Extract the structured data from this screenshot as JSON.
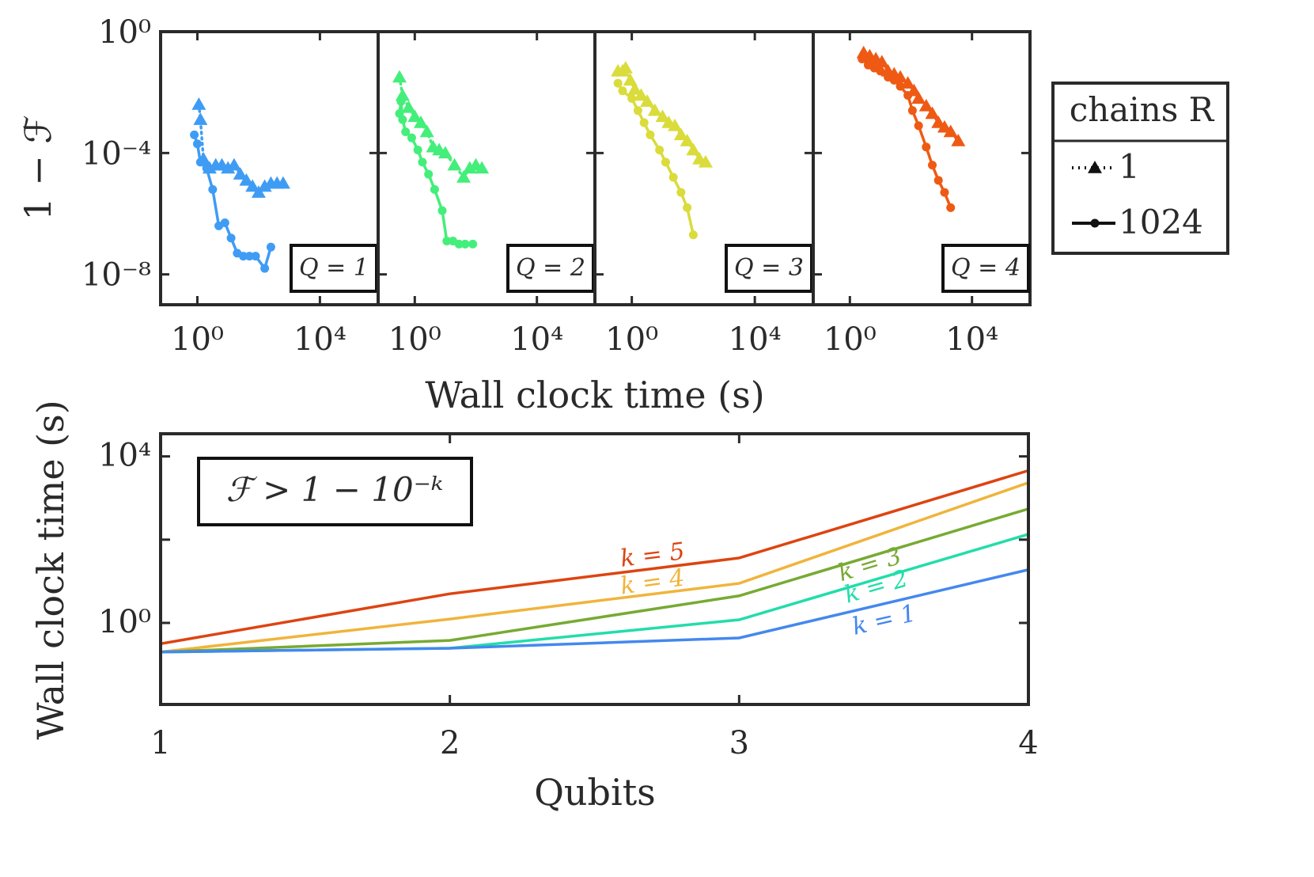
{
  "figure": {
    "xlabel": "Wall clock time (s)",
    "ylabel": "1 − ℱ",
    "legend_title": "chains R"
  },
  "chart_data": [
    {
      "type": "line",
      "annotation": "Q = 1",
      "color": "#3f9cf5",
      "xscale": "log",
      "yscale": "log",
      "xlim": [
        0.0631,
        794000
      ],
      "ylim": [
        1e-09,
        1
      ],
      "xticks": [
        {
          "value": 1,
          "label": "10⁰"
        },
        {
          "value": 10000,
          "label": "10⁴"
        }
      ],
      "yticks": [
        {
          "value": 1,
          "label": "10⁰"
        },
        {
          "value": 0.0001,
          "label": "10⁻⁴"
        },
        {
          "value": 1e-08,
          "label": "10⁻⁸"
        }
      ],
      "series": [
        {
          "name": "1",
          "marker": "triangle",
          "linestyle": "dotted",
          "x": [
            1.12,
            1.26,
            1.58,
            2.51,
            3.98,
            6.31,
            10,
            15.8,
            25.1,
            39.8,
            63.1,
            100,
            158,
            251,
            398,
            631
          ],
          "values": [
            0.00398,
            0.00126,
            6.31e-05,
            3.16e-05,
            3.98e-05,
            3.98e-05,
            3.16e-05,
            3.98e-05,
            2e-05,
            1.26e-05,
            7.94e-06,
            5.01e-06,
            7.94e-06,
            1e-05,
            1e-05,
            1e-05
          ]
        },
        {
          "name": "1024",
          "marker": "circle",
          "linestyle": "solid",
          "x": [
            0.794,
            1,
            1.26,
            2.0,
            3.16,
            5.01,
            7.94,
            12.6,
            20,
            31.6,
            50.1,
            79.4,
            158,
            251
          ],
          "values": [
            0.000398,
            0.0002,
            5.01e-05,
            3.16e-05,
            6.31e-06,
            3.98e-07,
            5.01e-07,
            1.58e-07,
            5.01e-08,
            3.98e-08,
            3.98e-08,
            3.98e-08,
            1.58e-08,
            7.94e-08
          ]
        }
      ]
    },
    {
      "type": "line",
      "annotation": "Q = 2",
      "color": "#44ee7a",
      "xscale": "log",
      "yscale": "log",
      "xlim": [
        0.0631,
        794000
      ],
      "ylim": [
        1e-09,
        1
      ],
      "xticks": [
        {
          "value": 1,
          "label": "10⁰"
        },
        {
          "value": 10000,
          "label": "10⁴"
        }
      ],
      "series": [
        {
          "name": "1",
          "marker": "triangle",
          "linestyle": "dotted",
          "x": [
            0.316,
            0.398,
            0.631,
            1,
            1.58,
            2.51,
            3.98,
            6.31,
            10,
            20,
            39.8,
            63.1,
            100,
            158
          ],
          "values": [
            0.0316,
            0.00794,
            0.00316,
            0.00158,
            0.001,
            0.000501,
            0.000158,
            0.000126,
            0.0001,
            3.98e-05,
            1.58e-05,
            3.16e-05,
            3.98e-05,
            3.16e-05
          ]
        },
        {
          "name": "1024",
          "marker": "circle",
          "linestyle": "solid",
          "x": [
            0.316,
            0.355,
            0.398,
            0.501,
            0.794,
            1.26,
            1.78,
            2.82,
            4.47,
            7.94,
            11.2,
            17.8,
            28.2,
            44.7,
            79.4
          ],
          "values": [
            0.002,
            0.00501,
            0.00126,
            0.000501,
            0.000316,
            0.000126,
            5.01e-05,
            2e-05,
            6.31e-06,
            1.26e-06,
            1.26e-07,
            1.26e-07,
            1e-07,
            1e-07,
            1e-07
          ]
        }
      ]
    },
    {
      "type": "line",
      "annotation": "Q = 3",
      "color": "#d9dc3a",
      "xscale": "log",
      "yscale": "log",
      "xlim": [
        0.0631,
        794000
      ],
      "ylim": [
        1e-09,
        1
      ],
      "xticks": [
        {
          "value": 1,
          "label": "10⁰"
        },
        {
          "value": 10000,
          "label": "10⁴"
        }
      ],
      "series": [
        {
          "name": "1",
          "marker": "triangle",
          "linestyle": "dotted",
          "x": [
            0.355,
            0.501,
            0.631,
            0.891,
            1.26,
            2.0,
            3.16,
            5.62,
            10,
            15.8,
            25.1,
            39.8,
            63.1,
            100,
            158,
            251
          ],
          "values": [
            0.0501,
            0.0501,
            0.0631,
            0.0251,
            0.0126,
            0.00794,
            0.00501,
            0.00251,
            0.00158,
            0.001,
            0.000794,
            0.000398,
            0.000251,
            0.000126,
            6.31e-05,
            5.01e-05
          ]
        },
        {
          "name": "1024",
          "marker": "circle",
          "linestyle": "solid",
          "x": [
            0.355,
            0.501,
            1,
            1.58,
            2.51,
            3.98,
            7.94,
            12.6,
            22.4,
            39.8,
            63.1,
            100
          ],
          "values": [
            0.02,
            0.0112,
            0.00631,
            0.00251,
            0.001,
            0.000398,
            0.000126,
            5.01e-05,
            1.58e-05,
            5.01e-06,
            1.58e-06,
            2e-07
          ]
        }
      ]
    },
    {
      "type": "line",
      "annotation": "Q = 4",
      "color": "#ee5a14",
      "xscale": "log",
      "yscale": "log",
      "xlim": [
        0.0631,
        794000
      ],
      "ylim": [
        1e-09,
        1
      ],
      "xticks": [
        {
          "value": 1,
          "label": "10⁰"
        },
        {
          "value": 10000,
          "label": "10⁴"
        }
      ],
      "series": [
        {
          "name": "1",
          "marker": "triangle",
          "linestyle": "dotted",
          "x": [
            2.82,
            4.47,
            7.08,
            11.2,
            17.8,
            28.2,
            44.7,
            79.4,
            126,
            178,
            316,
            501,
            794,
            1260,
            2000,
            3550
          ],
          "values": [
            0.2,
            0.158,
            0.126,
            0.1,
            0.0501,
            0.0398,
            0.0316,
            0.02,
            0.0112,
            0.00631,
            0.00355,
            0.002,
            0.001,
            0.000708,
            0.000501,
            0.000251
          ]
        },
        {
          "name": "1024",
          "marker": "circle",
          "linestyle": "solid",
          "x": [
            2.51,
            3.98,
            6.31,
            10,
            17.8,
            28.2,
            44.7,
            79.4,
            112,
            178,
            316,
            501,
            794,
            1260,
            2000
          ],
          "values": [
            0.126,
            0.0794,
            0.0631,
            0.0501,
            0.0316,
            0.0251,
            0.0158,
            0.00794,
            0.00251,
            0.000794,
            0.000158,
            3.98e-05,
            1.26e-05,
            5.01e-06,
            1.58e-06
          ]
        }
      ]
    },
    {
      "type": "line",
      "annotation": "ℱ > 1 − 10⁻ᵏ",
      "xlabel": "Qubits",
      "ylabel": "Wall clock time (s)",
      "yscale": "log",
      "x": [
        1,
        2,
        3,
        4
      ],
      "xlim": [
        1,
        4
      ],
      "xticks": [
        1,
        2,
        3,
        4
      ],
      "ylim": [
        0.011,
        35000
      ],
      "yticks": [
        {
          "value": 1,
          "label": "10⁰"
        },
        {
          "value": 10000,
          "label": "10⁴"
        }
      ],
      "yticks_unlabeled": [
        100
      ],
      "series": [
        {
          "name": "k = 5",
          "color": "#dd4411",
          "values": [
            0.316,
            5.01,
            36.3,
            4570
          ]
        },
        {
          "name": "k = 4",
          "color": "#f0b43c",
          "values": [
            0.2,
            1.24,
            8.9,
            2340
          ]
        },
        {
          "name": "k = 3",
          "color": "#77aa33",
          "values": [
            0.2,
            0.38,
            4.47,
            550
          ]
        },
        {
          "name": "k = 2",
          "color": "#22ddaa",
          "values": [
            0.2,
            0.246,
            1.19,
            135
          ]
        },
        {
          "name": "k = 1",
          "color": "#4488ee",
          "values": [
            0.2,
            0.246,
            0.436,
            19
          ]
        }
      ]
    }
  ]
}
